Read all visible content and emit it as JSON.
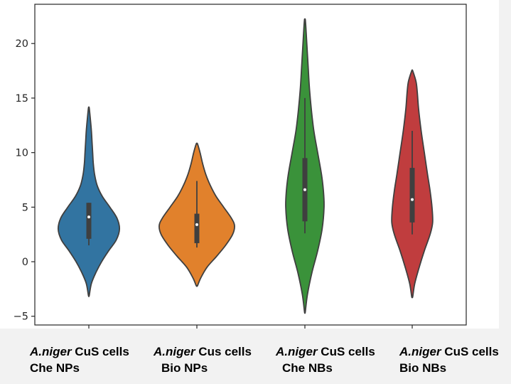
{
  "chart_data": {
    "type": "violin",
    "title": "",
    "xlabel": "",
    "ylabel": "",
    "ylim": [
      -5.8,
      23.6
    ],
    "yticks": [
      -5,
      0,
      5,
      10,
      15,
      20
    ],
    "grid": false,
    "violins": [
      {
        "label_italic": "A.niger",
        "label_rest": " CuS cells",
        "label_line2": "Che NPs",
        "color": "#3274a1",
        "extent": [
          -3.1,
          14.1
        ],
        "profile": [
          [
            -3.1,
            0.6
          ],
          [
            -2.0,
            4
          ],
          [
            -1.0,
            11
          ],
          [
            0.0,
            20
          ],
          [
            1.0,
            31
          ],
          [
            2.0,
            43
          ],
          [
            3.0,
            48
          ],
          [
            4.0,
            44
          ],
          [
            5.0,
            33
          ],
          [
            6.0,
            21
          ],
          [
            7.0,
            13
          ],
          [
            8.0,
            9
          ],
          [
            9.0,
            7
          ],
          [
            10.0,
            6
          ],
          [
            11.0,
            5
          ],
          [
            12.0,
            4
          ],
          [
            13.0,
            2.5
          ],
          [
            14.1,
            0.6
          ]
        ],
        "q1": 2.1,
        "median": 4.1,
        "q3": 5.4,
        "whisker_low": 1.5,
        "whisker_high": 5.4
      },
      {
        "label_italic": "A.niger",
        "label_rest": " Cus cells",
        "label_line2": "Bio NPs",
        "color": "#e1812c",
        "extent": [
          -2.2,
          10.8
        ],
        "profile": [
          [
            -2.2,
            1
          ],
          [
            -1.5,
            6
          ],
          [
            -0.5,
            16
          ],
          [
            0.5,
            31
          ],
          [
            1.5,
            45
          ],
          [
            2.5,
            56
          ],
          [
            3.3,
            59
          ],
          [
            4.0,
            54
          ],
          [
            5.0,
            42
          ],
          [
            6.0,
            30
          ],
          [
            7.0,
            21
          ],
          [
            8.0,
            14
          ],
          [
            9.0,
            9
          ],
          [
            10.0,
            5
          ],
          [
            10.8,
            1
          ]
        ],
        "q1": 1.7,
        "median": 3.4,
        "q3": 4.4,
        "whisker_low": 1.3,
        "whisker_high": 7.4
      },
      {
        "label_italic": "A.niger",
        "label_rest": " CuS cells",
        "label_line2": "Che NBs",
        "color": "#3a923a",
        "extent": [
          -4.6,
          22.2
        ],
        "profile": [
          [
            -4.6,
            0.6
          ],
          [
            -3.0,
            4
          ],
          [
            -1.0,
            11
          ],
          [
            1.0,
            20
          ],
          [
            3.0,
            27
          ],
          [
            5.0,
            30
          ],
          [
            6.5,
            29
          ],
          [
            8.0,
            26
          ],
          [
            10.0,
            20
          ],
          [
            12.0,
            14
          ],
          [
            14.0,
            10
          ],
          [
            16.0,
            7
          ],
          [
            18.0,
            5
          ],
          [
            20.0,
            3
          ],
          [
            21.5,
            1.5
          ],
          [
            22.2,
            0.6
          ]
        ],
        "q1": 3.7,
        "median": 6.6,
        "q3": 9.5,
        "whisker_low": 2.6,
        "whisker_high": 15.0
      },
      {
        "label_italic": "A.niger",
        "label_rest": " CuS cells",
        "label_line2": "Bio NBs",
        "color": "#c03d3e",
        "extent": [
          -3.2,
          17.5
        ],
        "profile": [
          [
            -3.2,
            0.8
          ],
          [
            -2.0,
            4
          ],
          [
            -0.5,
            11
          ],
          [
            1.0,
            19
          ],
          [
            2.5,
            28
          ],
          [
            3.6,
            32
          ],
          [
            5.0,
            31
          ],
          [
            6.5,
            28
          ],
          [
            8.0,
            24
          ],
          [
            10.0,
            19
          ],
          [
            12.0,
            14
          ],
          [
            14.0,
            10
          ],
          [
            15.5,
            8
          ],
          [
            16.5,
            6
          ],
          [
            17.5,
            0.8
          ]
        ],
        "q1": 3.6,
        "median": 5.7,
        "q3": 8.6,
        "whisker_low": 2.5,
        "whisker_high": 12.0
      }
    ]
  }
}
